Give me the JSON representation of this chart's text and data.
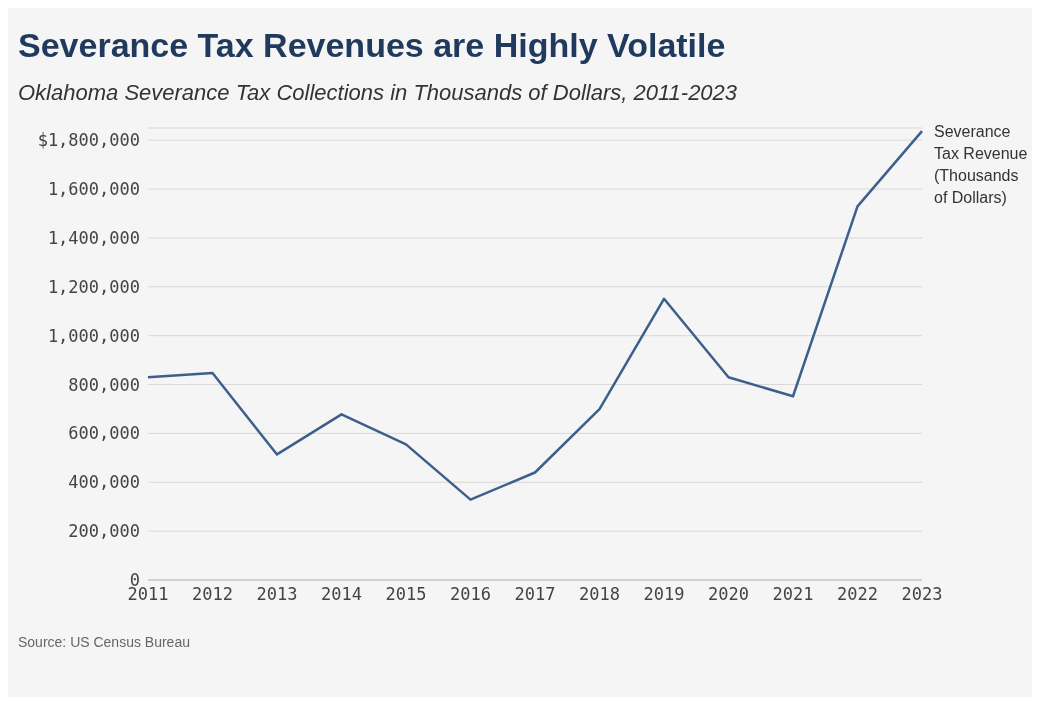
{
  "chart_data": {
    "type": "line",
    "title": "Severance Tax Revenues are Highly Volatile",
    "subtitle": "Oklahoma Severance Tax Collections in Thousands of Dollars, 2011-2023",
    "categories": [
      "2011",
      "2012",
      "2013",
      "2014",
      "2015",
      "2016",
      "2017",
      "2018",
      "2019",
      "2020",
      "2021",
      "2022",
      "2023"
    ],
    "series": [
      {
        "name": "Severance Tax Revenue (Thousands of Dollars)",
        "color": "#3d5f8c",
        "values": [
          830000,
          847000,
          514000,
          678000,
          555000,
          329000,
          440000,
          699000,
          1151000,
          830000,
          752000,
          1529000,
          1837000
        ]
      }
    ],
    "ylim": [
      0,
      1850000
    ],
    "yticks": [
      {
        "value": 0,
        "label": "0"
      },
      {
        "value": 200000,
        "label": "200,000"
      },
      {
        "value": 400000,
        "label": "400,000"
      },
      {
        "value": 600000,
        "label": "600,000"
      },
      {
        "value": 800000,
        "label": "800,000"
      },
      {
        "value": 1000000,
        "label": "1,000,000"
      },
      {
        "value": 1200000,
        "label": "1,200,000"
      },
      {
        "value": 1400000,
        "label": "1,400,000"
      },
      {
        "value": 1600000,
        "label": "1,600,000"
      },
      {
        "value": 1800000,
        "label": "$1,800,000"
      }
    ],
    "grid": "y",
    "marker": "none",
    "line_style": "solid",
    "annotations": [
      "Source: US Census Bureau"
    ]
  }
}
